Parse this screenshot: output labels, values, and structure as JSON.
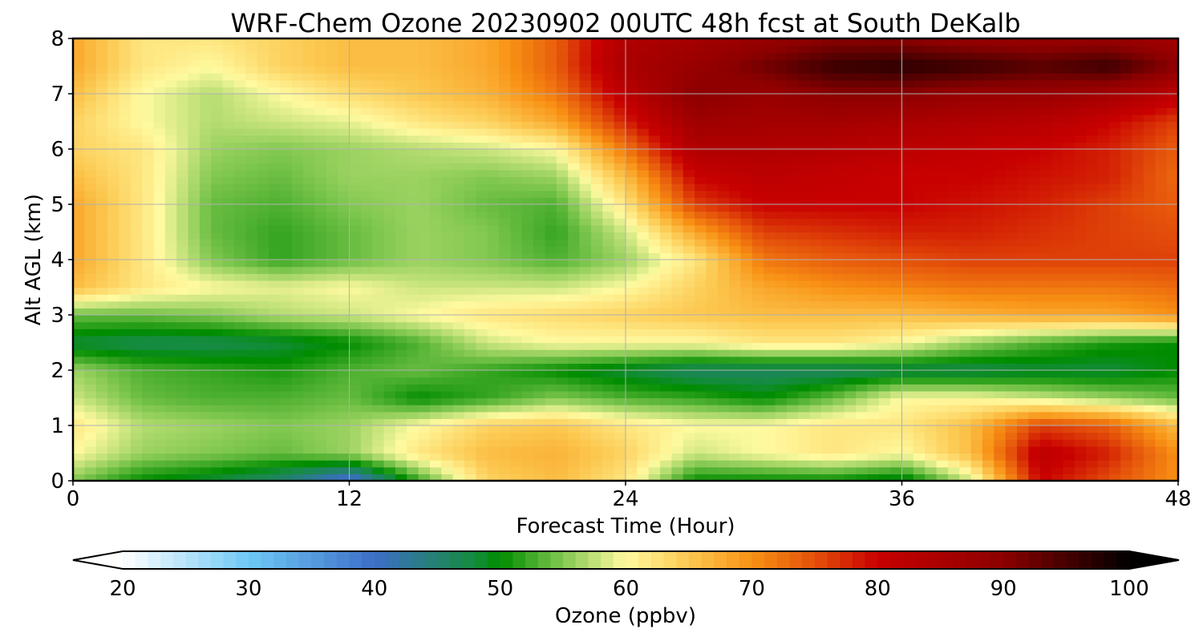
{
  "chart_data": {
    "type": "heatmap",
    "title": "WRF-Chem Ozone  20230902 00UTC 48h fcst at South DeKalb",
    "xlabel": "Forecast Time (Hour)",
    "ylabel": "Alt AGL (km)",
    "xlim": [
      0,
      48
    ],
    "ylim": [
      0,
      8
    ],
    "x_ticks": [
      "0",
      "12",
      "24",
      "36",
      "48"
    ],
    "y_ticks": [
      "0",
      "1",
      "2",
      "3",
      "4",
      "5",
      "6",
      "7",
      "8"
    ],
    "grid": true,
    "colorbar": {
      "label": "Ozone  (ppbv)",
      "min": 20,
      "max": 100,
      "extend": "both",
      "tick_labels": [
        "20",
        "30",
        "40",
        "50",
        "60",
        "70",
        "80",
        "90",
        "100"
      ]
    },
    "x_hours": [
      0,
      3,
      6,
      9,
      12,
      15,
      18,
      21,
      24,
      27,
      30,
      33,
      36,
      39,
      42,
      45,
      48
    ],
    "y_km": [
      0,
      0.5,
      1,
      1.5,
      2,
      2.5,
      3,
      3.5,
      4,
      4.5,
      5,
      5.5,
      6,
      6.5,
      7,
      7.5,
      8
    ],
    "z_ppbv": [
      [
        55,
        50,
        48,
        45,
        38,
        52,
        64,
        66,
        62,
        50,
        50,
        50,
        48,
        58,
        80,
        75,
        70
      ],
      [
        60,
        56,
        55,
        54,
        56,
        62,
        66,
        67,
        64,
        58,
        60,
        62,
        60,
        66,
        82,
        78,
        70
      ],
      [
        62,
        57,
        56,
        55,
        56,
        60,
        64,
        65,
        62,
        60,
        60,
        62,
        62,
        66,
        76,
        74,
        66
      ],
      [
        58,
        54,
        53,
        53,
        54,
        50,
        52,
        55,
        53,
        52,
        50,
        54,
        60,
        60,
        58,
        56,
        54
      ],
      [
        56,
        53,
        52,
        51,
        53,
        54,
        52,
        50,
        48,
        46,
        46,
        46,
        47,
        47,
        48,
        48,
        50
      ],
      [
        48,
        47,
        47,
        48,
        50,
        53,
        58,
        60,
        60,
        60,
        62,
        62,
        60,
        56,
        53,
        51,
        50
      ],
      [
        54,
        54,
        55,
        57,
        58,
        60,
        62,
        63,
        64,
        65,
        66,
        66,
        66,
        67,
        68,
        68,
        70
      ],
      [
        66,
        62,
        60,
        59,
        60,
        58,
        58,
        58,
        60,
        64,
        68,
        70,
        71,
        72,
        72,
        72,
        73
      ],
      [
        68,
        62,
        55,
        52,
        54,
        56,
        55,
        53,
        56,
        62,
        72,
        74,
        75,
        76,
        76,
        76,
        76
      ],
      [
        68,
        62,
        54,
        52,
        54,
        56,
        55,
        52,
        58,
        68,
        76,
        77,
        78,
        78,
        77,
        76,
        75
      ],
      [
        68,
        62,
        54,
        53,
        55,
        56,
        54,
        53,
        62,
        76,
        80,
        80,
        80,
        79,
        78,
        76,
        74
      ],
      [
        66,
        62,
        55,
        54,
        56,
        56,
        55,
        56,
        66,
        80,
        82,
        81,
        80,
        80,
        79,
        78,
        73
      ],
      [
        64,
        62,
        56,
        55,
        56,
        57,
        58,
        60,
        72,
        84,
        84,
        83,
        82,
        81,
        80,
        78,
        74
      ],
      [
        64,
        60,
        57,
        58,
        59,
        62,
        64,
        68,
        78,
        87,
        86,
        86,
        85,
        84,
        83,
        80,
        76
      ],
      [
        66,
        60,
        57,
        60,
        63,
        65,
        67,
        72,
        82,
        90,
        88,
        90,
        90,
        88,
        88,
        86,
        82
      ],
      [
        68,
        62,
        60,
        64,
        66,
        66,
        68,
        74,
        85,
        88,
        92,
        96,
        97,
        96,
        94,
        96,
        90
      ],
      [
        68,
        62,
        62,
        64,
        66,
        66,
        68,
        74,
        84,
        86,
        88,
        90,
        90,
        88,
        88,
        88,
        86
      ]
    ]
  }
}
